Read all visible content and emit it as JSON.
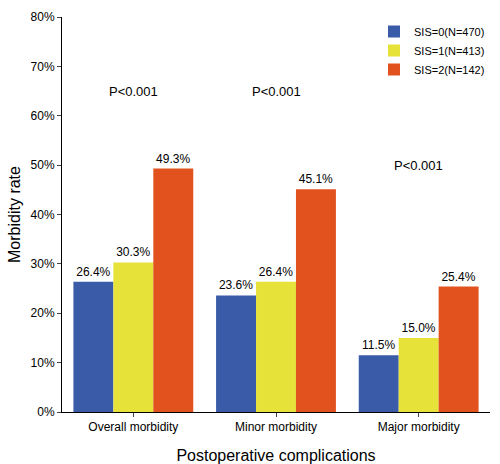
{
  "chart_data": {
    "type": "bar",
    "x_label": "Postoperative complications",
    "y_label": "Morbidity rate",
    "categories": [
      "Overall morbidity",
      "Minor morbidity",
      "Major morbidity"
    ],
    "series": [
      {
        "name": "SIS=0(N=470)",
        "color": "#3a5ba8",
        "values": [
          26.4,
          23.6,
          11.5
        ],
        "value_labels": [
          "26.4%",
          "23.6%",
          "11.5%"
        ]
      },
      {
        "name": "SIS=1(N=413)",
        "color": "#e6e23a",
        "values": [
          30.3,
          26.4,
          15.0
        ],
        "value_labels": [
          "30.3%",
          "26.4%",
          "15.0%"
        ]
      },
      {
        "name": "SIS=2(N=142)",
        "color": "#e2521f",
        "values": [
          49.3,
          45.1,
          25.4
        ],
        "value_labels": [
          "49.3%",
          "45.1%",
          "25.4%"
        ]
      }
    ],
    "ylim": [
      0,
      80
    ],
    "yticks": [
      {
        "value": 0,
        "label": "0%"
      },
      {
        "value": 10,
        "label": "10%"
      },
      {
        "value": 20,
        "label": "20%"
      },
      {
        "value": 30,
        "label": "30%"
      },
      {
        "value": 40,
        "label": "40%"
      },
      {
        "value": 50,
        "label": "50%"
      },
      {
        "value": 60,
        "label": "60%"
      },
      {
        "value": 70,
        "label": "70%"
      },
      {
        "value": 80,
        "label": "80%"
      }
    ],
    "annotations": [
      {
        "text": "P<0.001",
        "x": "Overall morbidity",
        "y": 65
      },
      {
        "text": "P<0.001",
        "x": "Minor morbidity",
        "y": 65
      },
      {
        "text": "P<0.001",
        "x": "Major morbidity",
        "y": 50
      }
    ],
    "grid": false,
    "legend": "upper right",
    "data_labels": true
  }
}
